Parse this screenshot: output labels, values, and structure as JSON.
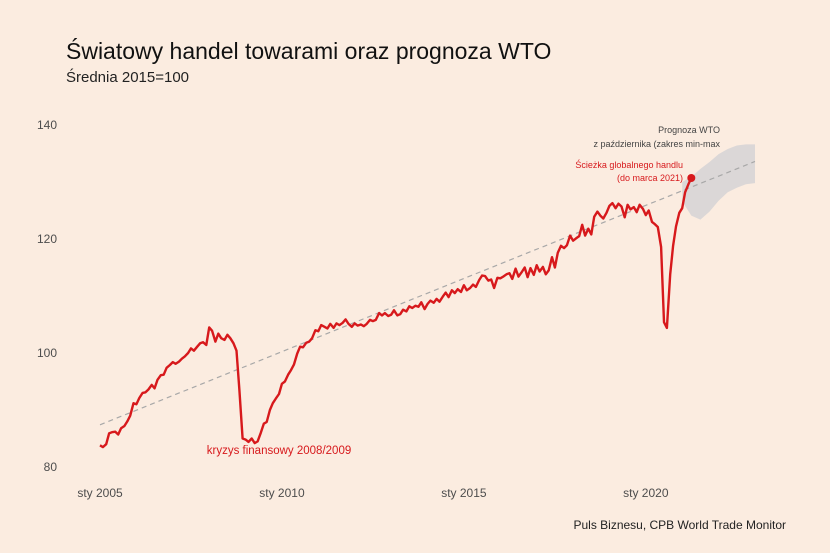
{
  "title": "Światowy handel towarami oraz prognoza WTO",
  "subtitle": "Średnia 2015=100",
  "source": "Puls Biznesu, CPB World Trade Monitor",
  "colors": {
    "background": "#fbece0",
    "line": "#d7191c",
    "trend": "#a8a8a8",
    "band": "#d9d6d6"
  },
  "annotations": {
    "crisis": "kryzys finansowy 2008/2009",
    "path_line1": "Ścieżka globalnego handlu",
    "path_line2": "(do marca 2021)",
    "wto_line1": "Prognoza WTO",
    "wto_line2": "z października (zakres min-max"
  },
  "chart_data": {
    "type": "line",
    "title": "Światowy handel towarami oraz prognoza WTO",
    "subtitle": "Średnia 2015=100",
    "x_ticks": [
      {
        "label": "sty 2005",
        "value": 2005
      },
      {
        "label": "sty 2010",
        "value": 2010
      },
      {
        "label": "sty 2015",
        "value": 2015
      },
      {
        "label": "sty 2020",
        "value": 2020
      }
    ],
    "y_ticks": [
      80,
      100,
      120,
      140
    ],
    "ylim": [
      80,
      140
    ],
    "xlim": [
      2005,
      2023
    ],
    "grid": false,
    "series_values": [
      [
        2005.0,
        83.8
      ],
      [
        2005.08,
        83.5
      ],
      [
        2005.17,
        84.0
      ],
      [
        2005.25,
        85.9
      ],
      [
        2005.33,
        86.1
      ],
      [
        2005.42,
        86.2
      ],
      [
        2005.5,
        85.7
      ],
      [
        2005.58,
        86.8
      ],
      [
        2005.67,
        87.2
      ],
      [
        2005.75,
        88.0
      ],
      [
        2005.83,
        89.0
      ],
      [
        2005.92,
        91.2
      ],
      [
        2006.0,
        91.0
      ],
      [
        2006.08,
        92.1
      ],
      [
        2006.17,
        93.0
      ],
      [
        2006.25,
        93.1
      ],
      [
        2006.33,
        93.6
      ],
      [
        2006.42,
        94.4
      ],
      [
        2006.5,
        93.8
      ],
      [
        2006.58,
        95.3
      ],
      [
        2006.67,
        96.1
      ],
      [
        2006.75,
        96.2
      ],
      [
        2006.83,
        97.4
      ],
      [
        2006.92,
        97.9
      ],
      [
        2007.0,
        98.4
      ],
      [
        2007.08,
        98.1
      ],
      [
        2007.17,
        98.5
      ],
      [
        2007.25,
        99.0
      ],
      [
        2007.33,
        99.4
      ],
      [
        2007.42,
        100.0
      ],
      [
        2007.5,
        100.8
      ],
      [
        2007.58,
        100.4
      ],
      [
        2007.67,
        101.1
      ],
      [
        2007.75,
        101.7
      ],
      [
        2007.83,
        101.9
      ],
      [
        2007.92,
        101.4
      ],
      [
        2008.0,
        104.5
      ],
      [
        2008.08,
        103.9
      ],
      [
        2008.17,
        102.0
      ],
      [
        2008.25,
        103.4
      ],
      [
        2008.33,
        102.6
      ],
      [
        2008.42,
        102.3
      ],
      [
        2008.5,
        103.2
      ],
      [
        2008.58,
        102.6
      ],
      [
        2008.67,
        101.7
      ],
      [
        2008.75,
        100.4
      ],
      [
        2008.83,
        93.5
      ],
      [
        2008.92,
        85.0
      ],
      [
        2009.0,
        84.8
      ],
      [
        2009.08,
        84.4
      ],
      [
        2009.17,
        85.0
      ],
      [
        2009.25,
        84.2
      ],
      [
        2009.33,
        84.5
      ],
      [
        2009.42,
        86.0
      ],
      [
        2009.5,
        87.6
      ],
      [
        2009.58,
        87.9
      ],
      [
        2009.67,
        90.0
      ],
      [
        2009.75,
        91.2
      ],
      [
        2009.83,
        92.0
      ],
      [
        2009.92,
        92.8
      ],
      [
        2010.0,
        94.6
      ],
      [
        2010.08,
        95.0
      ],
      [
        2010.17,
        96.2
      ],
      [
        2010.25,
        97.0
      ],
      [
        2010.33,
        98.0
      ],
      [
        2010.42,
        99.9
      ],
      [
        2010.5,
        101.1
      ],
      [
        2010.58,
        101.0
      ],
      [
        2010.67,
        101.8
      ],
      [
        2010.75,
        102.0
      ],
      [
        2010.83,
        102.6
      ],
      [
        2010.92,
        104.0
      ],
      [
        2011.0,
        103.8
      ],
      [
        2011.08,
        104.9
      ],
      [
        2011.17,
        104.6
      ],
      [
        2011.25,
        104.3
      ],
      [
        2011.33,
        105.1
      ],
      [
        2011.42,
        104.4
      ],
      [
        2011.5,
        105.2
      ],
      [
        2011.58,
        104.9
      ],
      [
        2011.67,
        105.3
      ],
      [
        2011.75,
        105.9
      ],
      [
        2011.83,
        105.1
      ],
      [
        2011.92,
        104.6
      ],
      [
        2012.0,
        105.2
      ],
      [
        2012.08,
        104.8
      ],
      [
        2012.17,
        105.0
      ],
      [
        2012.25,
        104.7
      ],
      [
        2012.33,
        105.1
      ],
      [
        2012.42,
        105.8
      ],
      [
        2012.5,
        105.6
      ],
      [
        2012.58,
        105.8
      ],
      [
        2012.67,
        107.0
      ],
      [
        2012.75,
        106.6
      ],
      [
        2012.83,
        107.0
      ],
      [
        2012.92,
        106.5
      ],
      [
        2013.0,
        106.7
      ],
      [
        2013.08,
        107.5
      ],
      [
        2013.17,
        106.6
      ],
      [
        2013.25,
        106.8
      ],
      [
        2013.33,
        107.6
      ],
      [
        2013.42,
        107.3
      ],
      [
        2013.5,
        108.2
      ],
      [
        2013.58,
        107.9
      ],
      [
        2013.67,
        108.3
      ],
      [
        2013.75,
        108.1
      ],
      [
        2013.83,
        108.9
      ],
      [
        2013.92,
        107.7
      ],
      [
        2014.0,
        108.6
      ],
      [
        2014.08,
        109.2
      ],
      [
        2014.17,
        108.8
      ],
      [
        2014.25,
        109.5
      ],
      [
        2014.33,
        109.0
      ],
      [
        2014.42,
        109.9
      ],
      [
        2014.5,
        110.6
      ],
      [
        2014.58,
        109.8
      ],
      [
        2014.67,
        111.0
      ],
      [
        2014.75,
        110.5
      ],
      [
        2014.83,
        111.2
      ],
      [
        2014.92,
        110.7
      ],
      [
        2015.0,
        111.9
      ],
      [
        2015.08,
        111.0
      ],
      [
        2015.17,
        111.4
      ],
      [
        2015.25,
        112.0
      ],
      [
        2015.33,
        111.6
      ],
      [
        2015.42,
        112.8
      ],
      [
        2015.5,
        113.6
      ],
      [
        2015.58,
        113.5
      ],
      [
        2015.67,
        112.7
      ],
      [
        2015.75,
        112.9
      ],
      [
        2015.83,
        111.4
      ],
      [
        2015.92,
        113.2
      ],
      [
        2016.0,
        113.1
      ],
      [
        2016.08,
        113.4
      ],
      [
        2016.17,
        113.8
      ],
      [
        2016.25,
        114.0
      ],
      [
        2016.33,
        113.0
      ],
      [
        2016.42,
        114.8
      ],
      [
        2016.5,
        113.4
      ],
      [
        2016.58,
        114.1
      ],
      [
        2016.67,
        115.0
      ],
      [
        2016.75,
        113.3
      ],
      [
        2016.83,
        114.9
      ],
      [
        2016.92,
        113.7
      ],
      [
        2017.0,
        115.4
      ],
      [
        2017.08,
        114.3
      ],
      [
        2017.17,
        115.1
      ],
      [
        2017.25,
        113.8
      ],
      [
        2017.33,
        114.5
      ],
      [
        2017.42,
        116.8
      ],
      [
        2017.5,
        115.0
      ],
      [
        2017.58,
        117.6
      ],
      [
        2017.67,
        118.8
      ],
      [
        2017.75,
        118.4
      ],
      [
        2017.83,
        118.9
      ],
      [
        2017.92,
        120.6
      ],
      [
        2018.0,
        119.7
      ],
      [
        2018.08,
        120.1
      ],
      [
        2018.17,
        120.5
      ],
      [
        2018.25,
        122.5
      ],
      [
        2018.33,
        120.6
      ],
      [
        2018.42,
        121.8
      ],
      [
        2018.5,
        120.8
      ],
      [
        2018.58,
        123.9
      ],
      [
        2018.67,
        124.8
      ],
      [
        2018.75,
        124.1
      ],
      [
        2018.83,
        123.6
      ],
      [
        2018.92,
        124.6
      ],
      [
        2019.0,
        125.8
      ],
      [
        2019.08,
        126.3
      ],
      [
        2019.17,
        125.4
      ],
      [
        2019.25,
        126.2
      ],
      [
        2019.33,
        125.7
      ],
      [
        2019.42,
        123.8
      ],
      [
        2019.5,
        126.0
      ],
      [
        2019.58,
        125.2
      ],
      [
        2019.67,
        125.6
      ],
      [
        2019.75,
        124.7
      ],
      [
        2019.83,
        126.0
      ],
      [
        2019.92,
        125.3
      ],
      [
        2020.0,
        124.2
      ],
      [
        2020.08,
        125.0
      ],
      [
        2020.17,
        123.0
      ],
      [
        2020.25,
        122.6
      ],
      [
        2020.33,
        122.1
      ],
      [
        2020.42,
        118.6
      ],
      [
        2020.5,
        105.4
      ],
      [
        2020.58,
        104.4
      ],
      [
        2020.67,
        113.8
      ],
      [
        2020.75,
        118.8
      ],
      [
        2020.83,
        122.2
      ],
      [
        2020.92,
        124.6
      ],
      [
        2021.0,
        125.4
      ],
      [
        2021.08,
        128.2
      ],
      [
        2021.17,
        129.6
      ],
      [
        2021.25,
        130.7
      ]
    ],
    "end_point": [
      2021.25,
      130.7
    ],
    "trend": {
      "from": [
        2005.0,
        87.4
      ],
      "to": [
        2023.0,
        133.6
      ]
    },
    "forecast_band": {
      "x": [
        2021.0,
        2021.25,
        2021.5,
        2021.75,
        2022.0,
        2022.25,
        2022.5,
        2022.75,
        2023.0
      ],
      "upper": [
        130.0,
        130.9,
        132.3,
        133.5,
        134.9,
        135.8,
        136.4,
        136.6,
        136.6
      ],
      "lower": [
        126.6,
        124.1,
        123.4,
        124.8,
        126.7,
        128.2,
        129.0,
        129.6,
        129.8
      ]
    }
  }
}
